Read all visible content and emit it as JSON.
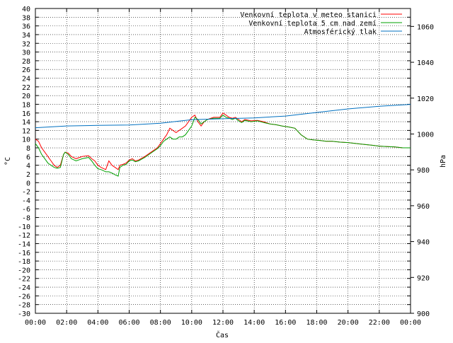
{
  "chart_data": {
    "type": "line",
    "xlabel": "Čas",
    "ylabel": "°C",
    "y2label": "hPa",
    "x_ticks": [
      "00:00",
      "02:00",
      "04:00",
      "06:00",
      "08:00",
      "10:00",
      "12:00",
      "14:00",
      "16:00",
      "18:00",
      "20:00",
      "22:00",
      "00:00"
    ],
    "ylim": [
      -30,
      40
    ],
    "y_ticks": [
      40,
      38,
      36,
      34,
      32,
      30,
      28,
      26,
      24,
      22,
      20,
      18,
      16,
      14,
      12,
      10,
      8,
      6,
      4,
      2,
      0,
      -2,
      -4,
      -6,
      -8,
      -10,
      -12,
      -14,
      -16,
      -18,
      -20,
      -22,
      -24,
      -26,
      -28,
      -30
    ],
    "y2lim": [
      900,
      1070
    ],
    "y2_ticks": [
      1060,
      1040,
      1020,
      1000,
      980,
      960,
      940,
      920,
      900
    ],
    "grid": true,
    "legend": "top-right",
    "x_unit": "hours",
    "xlim": [
      0,
      24
    ],
    "series": [
      {
        "name": "Venkovní teplota v meteo stanici",
        "color": "#ff0000",
        "axis": "y",
        "x": [
          0,
          0.2,
          0.4,
          0.6,
          0.8,
          1.0,
          1.2,
          1.4,
          1.6,
          1.8,
          1.9,
          2.1,
          2.3,
          2.6,
          3.0,
          3.4,
          3.6,
          3.8,
          4.0,
          4.2,
          4.5,
          4.7,
          4.9,
          5.1,
          5.3,
          5.4,
          5.6,
          5.8,
          6.0,
          6.2,
          6.4,
          6.6,
          7.0,
          7.4,
          7.8,
          8.0,
          8.2,
          8.4,
          8.6,
          8.8,
          9.0,
          9.2,
          9.4,
          9.6,
          9.8,
          10.0,
          10.2,
          10.4,
          10.6,
          10.8,
          11.0,
          11.4,
          11.8,
          12.0,
          12.2,
          12.4,
          12.6,
          12.8,
          13.0,
          13.2,
          13.4,
          13.8,
          14.2,
          14.6,
          15.0,
          15.4,
          15.8,
          16.2,
          16.6,
          17.0,
          17.4,
          17.8,
          18.2,
          18.6,
          19.0,
          19.5,
          20.0,
          20.5,
          21.0,
          21.5,
          22.0,
          22.5,
          23.0,
          23.5,
          24.0
        ],
        "y": [
          10,
          9.5,
          8,
          7,
          6,
          5,
          4,
          3.5,
          4,
          6.5,
          7,
          6.8,
          6,
          5.5,
          6,
          6.2,
          5.5,
          5,
          4,
          3.5,
          3,
          5,
          4,
          3.5,
          3,
          4,
          4.2,
          4.5,
          5.2,
          5.5,
          5,
          5.2,
          6,
          7,
          8,
          9,
          10,
          11,
          12.5,
          12,
          11.5,
          12,
          12.5,
          13,
          14,
          15,
          15.5,
          14,
          13,
          14,
          14.5,
          15,
          15,
          16,
          15.5,
          15,
          14.8,
          15,
          14.5,
          14,
          14.5,
          14.2,
          14.3,
          14,
          13.5,
          13.3,
          13,
          12.8,
          12.5,
          11,
          10,
          9.8,
          9.7,
          9.5,
          9.5,
          9.3,
          9.2,
          9,
          8.8,
          8.6,
          8.4,
          8.3,
          8.2,
          8,
          8
        ]
      },
      {
        "name": "Venkovní teplota 5 cm nad zemí",
        "color": "#00a000",
        "axis": "y",
        "x": [
          0,
          0.2,
          0.4,
          0.6,
          0.8,
          1.0,
          1.2,
          1.4,
          1.6,
          1.8,
          1.9,
          2.1,
          2.3,
          2.6,
          3.0,
          3.4,
          3.6,
          3.8,
          4.0,
          4.2,
          4.5,
          4.7,
          4.9,
          5.1,
          5.3,
          5.4,
          5.6,
          5.8,
          6.0,
          6.2,
          6.4,
          6.6,
          7.0,
          7.4,
          7.8,
          8.0,
          8.2,
          8.4,
          8.6,
          8.8,
          9.0,
          9.2,
          9.4,
          9.6,
          9.8,
          10.0,
          10.2,
          10.4,
          10.6,
          10.8,
          11.0,
          11.4,
          11.8,
          12.0,
          12.2,
          12.4,
          12.6,
          12.8,
          13.0,
          13.2,
          13.4,
          13.8,
          14.2,
          14.6,
          15.0,
          15.4,
          15.8,
          16.2,
          16.6,
          17.0,
          17.4,
          17.8,
          18.2,
          18.6,
          19.0,
          19.5,
          20.0,
          20.5,
          21.0,
          21.5,
          22.0,
          22.5,
          23.0,
          23.5,
          24.0
        ],
        "y": [
          9,
          8,
          6.5,
          5.5,
          4.5,
          4,
          3.5,
          3.3,
          3.5,
          6.5,
          7,
          6.5,
          5.5,
          5,
          5.5,
          5.8,
          5,
          4,
          3.2,
          3,
          2.5,
          2.5,
          2.2,
          1.8,
          1.5,
          3.5,
          4,
          4.2,
          5,
          5.2,
          4.8,
          5,
          5.8,
          6.8,
          7.8,
          8.5,
          9.5,
          10,
          10.5,
          10,
          10,
          10.5,
          10.5,
          11,
          12,
          13,
          15,
          14.5,
          13.5,
          14,
          14.5,
          14.8,
          14.8,
          15.5,
          15,
          14.8,
          14.5,
          14.8,
          14.2,
          13.8,
          14.3,
          14,
          14.2,
          13.8,
          13.5,
          13.3,
          13,
          12.8,
          12.5,
          11,
          10,
          9.8,
          9.7,
          9.5,
          9.5,
          9.3,
          9.2,
          9,
          8.8,
          8.6,
          8.4,
          8.3,
          8.2,
          8,
          8
        ]
      },
      {
        "name": "Atmosférický tlak",
        "color": "#0070c0",
        "axis": "y2",
        "x": [
          0,
          2,
          4,
          6,
          8,
          10,
          12,
          14,
          16,
          18,
          20,
          22,
          24
        ],
        "y": [
          1003.5,
          1004.5,
          1004.8,
          1005,
          1006,
          1008,
          1008.5,
          1009,
          1010,
          1012,
          1014,
          1015.5,
          1016.5
        ]
      }
    ]
  }
}
